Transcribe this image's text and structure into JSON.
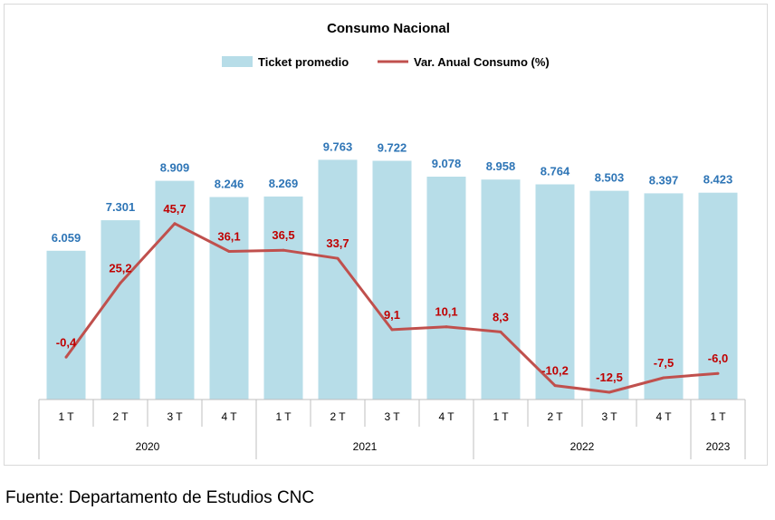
{
  "chart_data": {
    "type": "bar",
    "title": "Consumo Nacional",
    "categories": [
      "1 T",
      "2 T",
      "3 T",
      "4 T",
      "1 T",
      "2 T",
      "3 T",
      "4 T",
      "1 T",
      "2 T",
      "3 T",
      "4 T",
      "1 T"
    ],
    "groups": [
      {
        "label": "2020",
        "count": 4
      },
      {
        "label": "2021",
        "count": 4
      },
      {
        "label": "2022",
        "count": 4
      },
      {
        "label": "2023",
        "count": 1
      }
    ],
    "series": [
      {
        "name": "Ticket promedio",
        "type": "bar",
        "color": "#b7dde8",
        "label_color": "#2e75b6",
        "values": [
          6059,
          7301,
          8909,
          8246,
          8269,
          9763,
          9722,
          9078,
          8958,
          8764,
          8503,
          8397,
          8423
        ],
        "labels": [
          "6.059",
          "7.301",
          "8.909",
          "8.246",
          "8.269",
          "9.763",
          "9.722",
          "9.078",
          "8.958",
          "8.764",
          "8.503",
          "8.397",
          "8.423"
        ]
      },
      {
        "name": "Var. Anual Consumo (%)",
        "type": "line",
        "color": "#c0504d",
        "label_color": "#c00000",
        "values": [
          -0.4,
          25.2,
          45.7,
          36.1,
          36.5,
          33.7,
          9.1,
          10.1,
          8.3,
          -10.2,
          -12.5,
          -7.5,
          -6.0
        ],
        "labels": [
          "-0,4",
          "25,2",
          "45,7",
          "36,1",
          "36,5",
          "33,7",
          "9,1",
          "10,1",
          "8,3",
          "-10,2",
          "-12,5",
          "-7,5",
          "-6,0"
        ]
      }
    ],
    "ylim": [
      0,
      10000
    ],
    "y2lim": [
      -30,
      70
    ],
    "grid": false,
    "legend": "top-center"
  },
  "source": "Fuente: Departamento de Estudios CNC"
}
